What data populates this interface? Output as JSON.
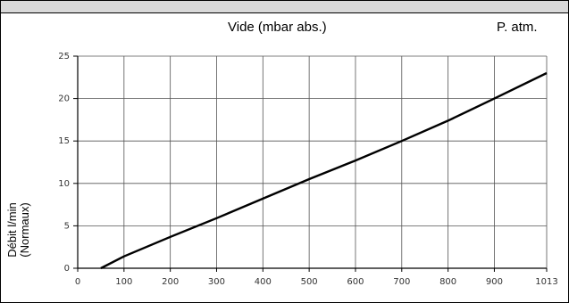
{
  "chart_data": {
    "type": "line",
    "title": "",
    "xlabel": "Vide (mbar abs.)",
    "xlabel_end": "P. atm.",
    "ylabel": [
      "Débit l/min",
      "(Normaux)"
    ],
    "x_ticks": [
      0,
      100,
      200,
      300,
      400,
      500,
      600,
      700,
      800,
      900,
      1013
    ],
    "y_ticks": [
      0,
      5,
      10,
      15,
      20,
      25
    ],
    "xlim": [
      0,
      1013
    ],
    "ylim": [
      0,
      25
    ],
    "grid": true,
    "series": [
      {
        "x": [
          50,
          100,
          200,
          300,
          400,
          500,
          600,
          700,
          800,
          900,
          1013
        ],
        "y": [
          0,
          1.4,
          3.7,
          5.9,
          8.2,
          10.5,
          12.7,
          15.0,
          17.4,
          20.0,
          23.0
        ]
      }
    ],
    "line_color": "#000000",
    "grid_color": "#555555"
  }
}
